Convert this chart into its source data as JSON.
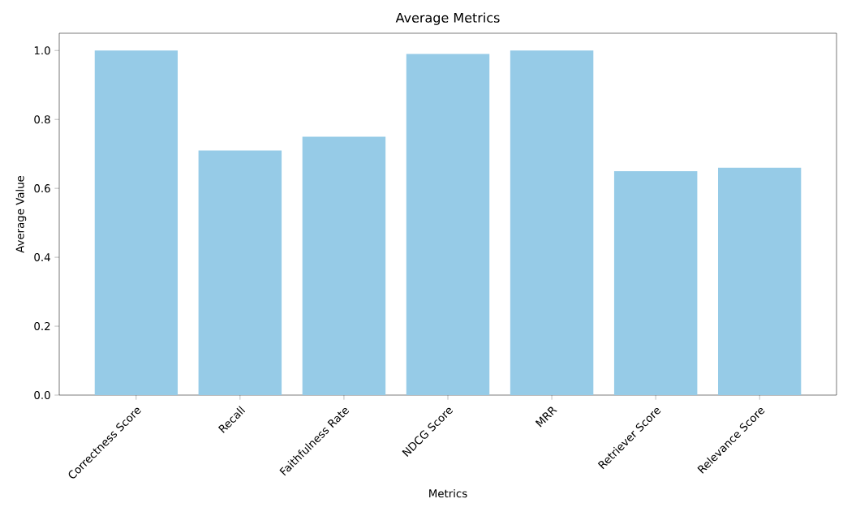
{
  "chart_data": {
    "type": "bar",
    "title": "Average Metrics",
    "xlabel": "Metrics",
    "ylabel": "Average Value",
    "categories": [
      "Correctness Score",
      "Recall",
      "Faithfulness Rate",
      "NDCG Score",
      "MRR",
      "Retriever Score",
      "Relevance Score"
    ],
    "values": [
      1.0,
      0.71,
      0.75,
      0.99,
      1.0,
      0.65,
      0.66
    ],
    "color": "#96cbe7",
    "ylim": [
      0,
      1.05
    ],
    "yticks": [
      {
        "value": 0,
        "label": "0.0"
      },
      0.2,
      0.4,
      0.6,
      0.8,
      {
        "value": 1.0,
        "label": "1.0"
      }
    ]
  }
}
